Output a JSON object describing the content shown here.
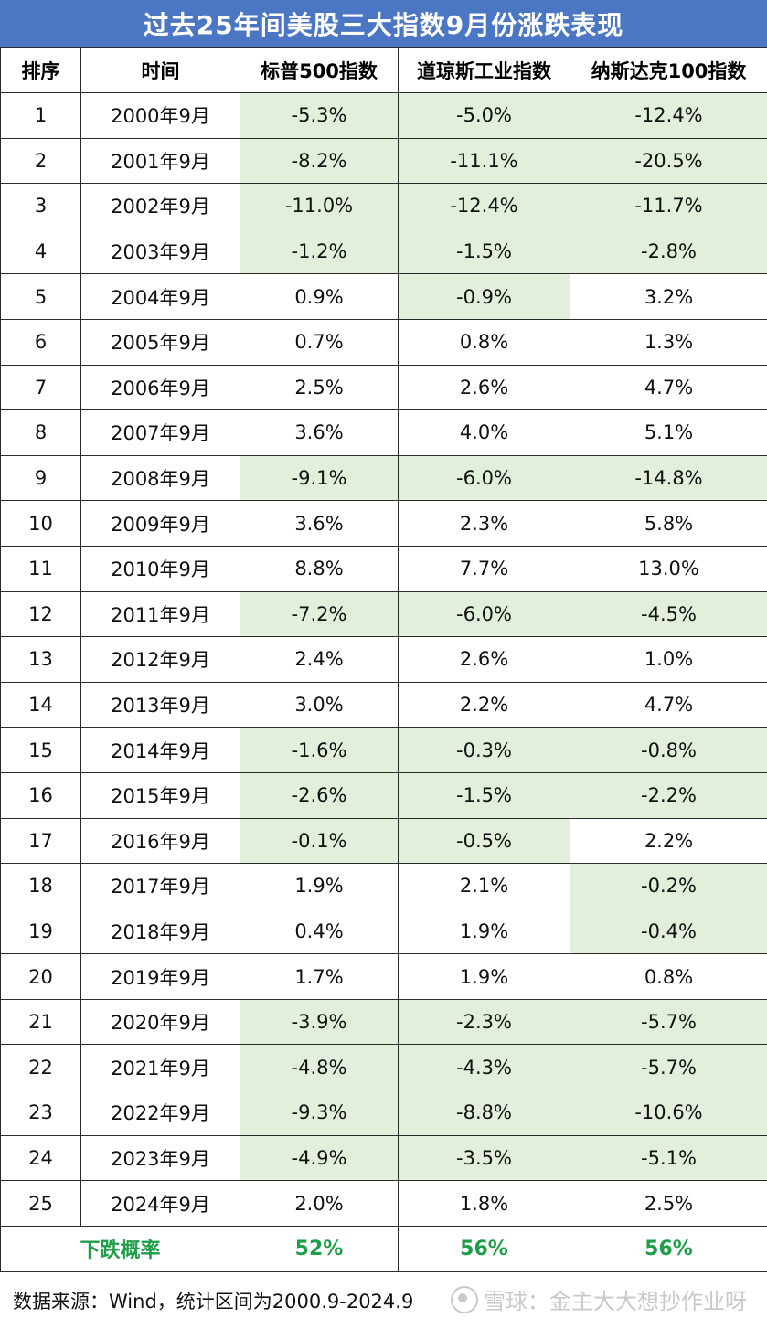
{
  "title": "过去25年间美股三大指数9月份涨跌表现",
  "headers": [
    "排序",
    "时间",
    "标普500指数",
    "道琼斯工业指数",
    "纳斯达克100指数"
  ],
  "rows": [
    {
      "rank": "1",
      "period": "2000年9月",
      "sp500": "-5.3%",
      "dow": "-5.0%",
      "nasdaq": "-12.4%"
    },
    {
      "rank": "2",
      "period": "2001年9月",
      "sp500": "-8.2%",
      "dow": "-11.1%",
      "nasdaq": "-20.5%"
    },
    {
      "rank": "3",
      "period": "2002年9月",
      "sp500": "-11.0%",
      "dow": "-12.4%",
      "nasdaq": "-11.7%"
    },
    {
      "rank": "4",
      "period": "2003年9月",
      "sp500": "-1.2%",
      "dow": "-1.5%",
      "nasdaq": "-2.8%"
    },
    {
      "rank": "5",
      "period": "2004年9月",
      "sp500": "0.9%",
      "dow": "-0.9%",
      "nasdaq": "3.2%"
    },
    {
      "rank": "6",
      "period": "2005年9月",
      "sp500": "0.7%",
      "dow": "0.8%",
      "nasdaq": "1.3%"
    },
    {
      "rank": "7",
      "period": "2006年9月",
      "sp500": "2.5%",
      "dow": "2.6%",
      "nasdaq": "4.7%"
    },
    {
      "rank": "8",
      "period": "2007年9月",
      "sp500": "3.6%",
      "dow": "4.0%",
      "nasdaq": "5.1%"
    },
    {
      "rank": "9",
      "period": "2008年9月",
      "sp500": "-9.1%",
      "dow": "-6.0%",
      "nasdaq": "-14.8%"
    },
    {
      "rank": "10",
      "period": "2009年9月",
      "sp500": "3.6%",
      "dow": "2.3%",
      "nasdaq": "5.8%"
    },
    {
      "rank": "11",
      "period": "2010年9月",
      "sp500": "8.8%",
      "dow": "7.7%",
      "nasdaq": "13.0%"
    },
    {
      "rank": "12",
      "period": "2011年9月",
      "sp500": "-7.2%",
      "dow": "-6.0%",
      "nasdaq": "-4.5%"
    },
    {
      "rank": "13",
      "period": "2012年9月",
      "sp500": "2.4%",
      "dow": "2.6%",
      "nasdaq": "1.0%"
    },
    {
      "rank": "14",
      "period": "2013年9月",
      "sp500": "3.0%",
      "dow": "2.2%",
      "nasdaq": "4.7%"
    },
    {
      "rank": "15",
      "period": "2014年9月",
      "sp500": "-1.6%",
      "dow": "-0.3%",
      "nasdaq": "-0.8%"
    },
    {
      "rank": "16",
      "period": "2015年9月",
      "sp500": "-2.6%",
      "dow": "-1.5%",
      "nasdaq": "-2.2%"
    },
    {
      "rank": "17",
      "period": "2016年9月",
      "sp500": "-0.1%",
      "dow": "-0.5%",
      "nasdaq": "2.2%"
    },
    {
      "rank": "18",
      "period": "2017年9月",
      "sp500": "1.9%",
      "dow": "2.1%",
      "nasdaq": "-0.2%"
    },
    {
      "rank": "19",
      "period": "2018年9月",
      "sp500": "0.4%",
      "dow": "1.9%",
      "nasdaq": "-0.4%"
    },
    {
      "rank": "20",
      "period": "2019年9月",
      "sp500": "1.7%",
      "dow": "1.9%",
      "nasdaq": "0.8%"
    },
    {
      "rank": "21",
      "period": "2020年9月",
      "sp500": "-3.9%",
      "dow": "-2.3%",
      "nasdaq": "-5.7%"
    },
    {
      "rank": "22",
      "period": "2021年9月",
      "sp500": "-4.8%",
      "dow": "-4.3%",
      "nasdaq": "-5.7%"
    },
    {
      "rank": "23",
      "period": "2022年9月",
      "sp500": "-9.3%",
      "dow": "-8.8%",
      "nasdaq": "-10.6%"
    },
    {
      "rank": "24",
      "period": "2023年9月",
      "sp500": "-4.9%",
      "dow": "-3.5%",
      "nasdaq": "-5.1%"
    },
    {
      "rank": "25",
      "period": "2024年9月",
      "sp500": "2.0%",
      "dow": "1.8%",
      "nasdaq": "2.5%"
    }
  ],
  "summary": {
    "label": "下跌概率",
    "sp500": "52%",
    "dow": "56%",
    "nasdaq": "56%"
  },
  "source_note": "数据来源：Wind，统计区间为2000.9-2024.9",
  "watermark": "雪球：金主大大想抄作业呀",
  "colors": {
    "title_bg": "#4a76c3",
    "negative_bg": "#e2efda",
    "summary_text": "#1f9e4a"
  }
}
